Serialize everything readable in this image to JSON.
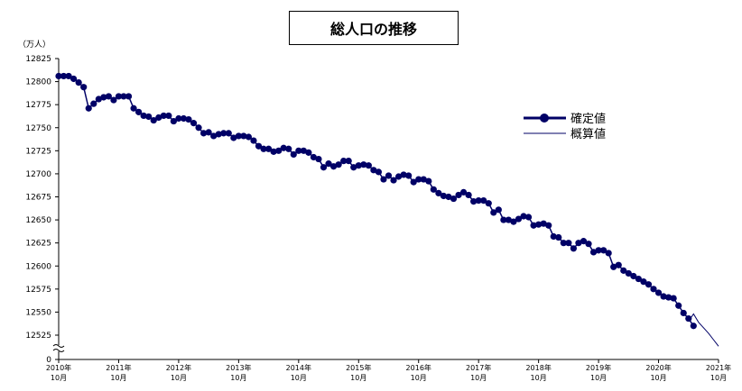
{
  "chart_data": {
    "type": "line",
    "title": "総人口の推移",
    "ylabel": "（万人）",
    "ylim": [
      12525,
      12825
    ],
    "yticks": [
      12525,
      12550,
      12575,
      12600,
      12625,
      12650,
      12675,
      12700,
      12725,
      12750,
      12775,
      12800,
      12825
    ],
    "y_zero_label": "0",
    "y_axis_break": true,
    "x_tick_labels": [
      {
        "year": "2010年",
        "month": "10月"
      },
      {
        "year": "2011年",
        "month": "10月"
      },
      {
        "year": "2012年",
        "month": "10月"
      },
      {
        "year": "2013年",
        "month": "10月"
      },
      {
        "year": "2014年",
        "month": "10月"
      },
      {
        "year": "2015年",
        "month": "10月"
      },
      {
        "year": "2016年",
        "month": "10月"
      },
      {
        "year": "2017年",
        "month": "10月"
      },
      {
        "year": "2018年",
        "month": "10月"
      },
      {
        "year": "2019年",
        "month": "10月"
      },
      {
        "year": "2020年",
        "month": "10月"
      },
      {
        "year": "2021年",
        "month": "10月"
      }
    ],
    "legend_placement": "right",
    "series": [
      {
        "name": "確定値",
        "color": "#000066",
        "marker": "circle",
        "start": "2010-10",
        "values": [
          12806,
          12806,
          12806,
          12803,
          12799,
          12794,
          12771,
          12776,
          12781,
          12783,
          12784,
          12780,
          12784,
          12784,
          12784,
          12771,
          12767,
          12763,
          12762,
          12758,
          12761,
          12763,
          12763,
          12757,
          12760,
          12760,
          12759,
          12755,
          12750,
          12744,
          12745,
          12741,
          12743,
          12744,
          12744,
          12739,
          12741,
          12741,
          12740,
          12736,
          12730,
          12727,
          12727,
          12724,
          12725,
          12728,
          12727,
          12721,
          12725,
          12725,
          12723,
          12718,
          12716,
          12707,
          12711,
          12708,
          12710,
          12714,
          12714,
          12707,
          12709,
          12710,
          12709,
          12704,
          12702,
          12694,
          12698,
          12693,
          12697,
          12699,
          12698,
          12691,
          12694,
          12694,
          12692,
          12683,
          12679,
          12676,
          12675,
          12673,
          12677,
          12680,
          12677,
          12670,
          12671,
          12671,
          12668,
          12658,
          12661,
          12650,
          12650,
          12648,
          12651,
          12654,
          12653,
          12644,
          12645,
          12646,
          12644,
          12632,
          12631,
          12625,
          12625,
          12619,
          12625,
          12627,
          12624,
          12615,
          12617,
          12617,
          12614,
          12599,
          12601,
          12595,
          12592,
          12589,
          12586,
          12583,
          12580,
          12575,
          12571,
          12567,
          12566,
          12565,
          12557,
          12549,
          12543,
          12535
        ]
      },
      {
        "name": "概算値",
        "color": "#000066",
        "marker": "none",
        "start": "2021-04",
        "values": [
          12540,
          12548,
          12539,
          12533,
          12527,
          12520,
          12513
        ]
      }
    ]
  }
}
